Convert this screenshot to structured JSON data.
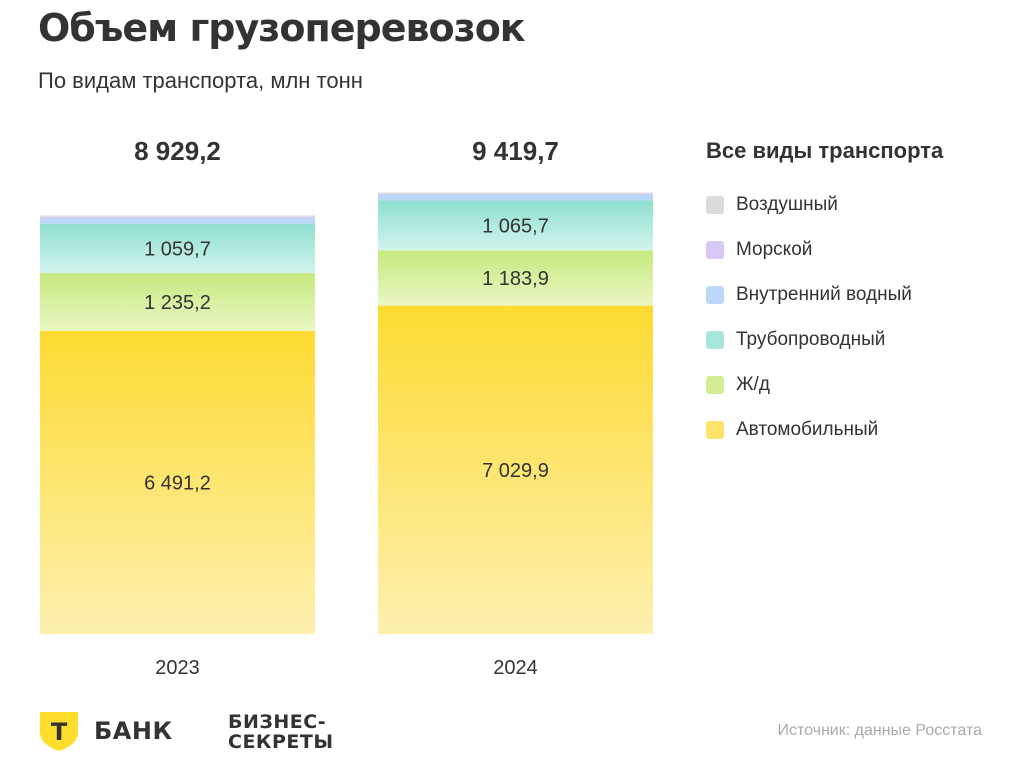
{
  "header": {
    "title": "Объем грузоперевозок",
    "subtitle": "По видам транспорта, млн тонн"
  },
  "legend": {
    "title": "Все виды транспорта",
    "items": [
      {
        "label": "Воздушный",
        "color": "#dcdcdc"
      },
      {
        "label": "Морской",
        "color": "#d7c8f5"
      },
      {
        "label": "Внутренний водный",
        "color": "#bcd8f8"
      },
      {
        "label": "Трубопроводный",
        "color": "#a8e6d9"
      },
      {
        "label": "Ж/д",
        "color": "#d4ee95"
      },
      {
        "label": "Автомобильный",
        "color": "#fde36a"
      }
    ]
  },
  "chart_data": {
    "type": "bar",
    "stacked": true,
    "categories": [
      "2023",
      "2024"
    ],
    "totals": [
      {
        "value": 8929.2,
        "label": "8 929,2"
      },
      {
        "value": 9419.7,
        "label": "9 419,7"
      }
    ],
    "series": [
      {
        "name": "Автомобильный",
        "values": [
          6491.2,
          7029.9
        ],
        "labels": [
          "6 491,2",
          "7 029,9"
        ],
        "color_top": "#fddb32",
        "color_bottom": "#fdf0b0"
      },
      {
        "name": "Ж/д",
        "values": [
          1235.2,
          1183.9
        ],
        "labels": [
          "1 235,2",
          "1 183,9"
        ],
        "color_top": "#c6e97e",
        "color_bottom": "#eaf7c4"
      },
      {
        "name": "Трубопроводный",
        "values": [
          1059.7,
          1065.7
        ],
        "labels": [
          "1 059,7",
          "1 065,7"
        ],
        "color_top": "#8fdfcf",
        "color_bottom": "#d2f4ee"
      },
      {
        "name": "Внутренний водный",
        "values": [
          110,
          120
        ],
        "labels": [
          "",
          ""
        ],
        "color_top": "#bcd8f8",
        "color_bottom": "#bcd8f8"
      },
      {
        "name": "Морской",
        "values": [
          33,
          20
        ],
        "labels": [
          "",
          ""
        ],
        "color_top": "#d7c8f5",
        "color_bottom": "#d7c8f5"
      },
      {
        "name": "Воздушный",
        "values": [
          1,
          1
        ],
        "labels": [
          "",
          ""
        ],
        "color_top": "#dcdcdc",
        "color_bottom": "#dcdcdc"
      }
    ],
    "ylim": [
      0,
      9419.7
    ],
    "grid": false,
    "legend_position": "right"
  },
  "footer": {
    "tbank_logo": "Т БАНК",
    "tbank_mark": "Т",
    "tbank_name": "БАНК",
    "bs_line1": "БИЗНЕС-",
    "bs_line2": "СЕКРЕТЫ",
    "source": "Источник: данные Росстата"
  }
}
